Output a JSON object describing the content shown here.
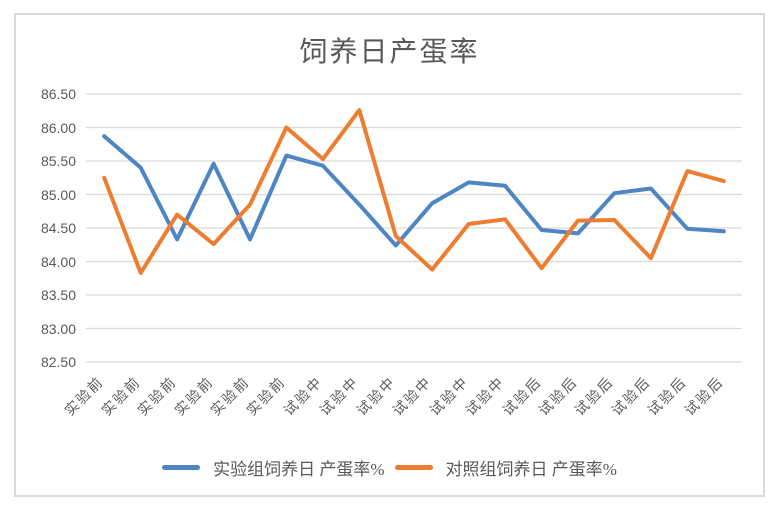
{
  "chart_data": {
    "type": "line",
    "title": "饲养日产蛋率",
    "categories": [
      "实验前",
      "实验前",
      "实验前",
      "实验前",
      "实验前",
      "实验前",
      "试验中",
      "试验中",
      "试验中",
      "试验中",
      "试验中",
      "试验中",
      "试验后",
      "试验后",
      "试验后",
      "试验后",
      "试验后",
      "试验后"
    ],
    "series": [
      {
        "name": "实验组饲养日 产蛋率%",
        "color": "#4E86C4",
        "values": [
          85.87,
          85.4,
          84.33,
          85.46,
          84.33,
          85.58,
          85.43,
          84.85,
          84.24,
          84.87,
          85.18,
          85.13,
          84.47,
          84.42,
          85.02,
          85.09,
          84.49,
          84.45
        ]
      },
      {
        "name": "对照组饲养日 产蛋率%",
        "color": "#ED7D31",
        "values": [
          85.25,
          83.83,
          84.7,
          84.26,
          84.85,
          86.0,
          85.53,
          86.26,
          84.38,
          83.88,
          84.56,
          84.63,
          83.9,
          84.61,
          84.62,
          84.05,
          85.35,
          85.2
        ]
      }
    ],
    "y_ticks": [
      "86.50",
      "86.00",
      "85.50",
      "85.00",
      "84.50",
      "84.00",
      "83.50",
      "83.00",
      "82.50"
    ],
    "ylim": [
      82.5,
      86.5
    ],
    "grid": true,
    "legend_position": "bottom",
    "xlabel": "",
    "ylabel": ""
  },
  "colors": {
    "grid": "#D9D9D9",
    "frame_border": "#D9D9D9",
    "text": "#595959"
  }
}
